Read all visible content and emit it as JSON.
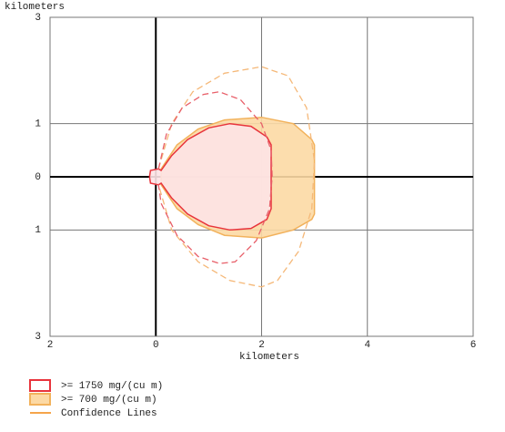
{
  "chart_data": {
    "type": "threat_zone",
    "xlabel": "kilometers",
    "ylabel": "kilometers",
    "xlim": [
      -2,
      6
    ],
    "ylim": [
      -3,
      3
    ],
    "xticks": [
      {
        "value": -2,
        "label": "2"
      },
      0,
      2,
      4,
      6
    ],
    "yticks": [
      {
        "value": -3,
        "label": "3"
      },
      {
        "value": -1,
        "label": "1"
      },
      0,
      1,
      3
    ],
    "grid": true,
    "series": [
      {
        "name": ">= 700 mg/(cu m)",
        "color": "#f2b25c",
        "fill": "#fcd9a4",
        "x": [
          0.1,
          0.4,
          0.8,
          1.3,
          2.0,
          2.6,
          2.95,
          3.0,
          3.0,
          2.95,
          2.6,
          2.0,
          1.3,
          0.8,
          0.4,
          0.1
        ],
        "y": [
          0.15,
          0.6,
          0.9,
          1.07,
          1.12,
          1.0,
          0.7,
          0.6,
          -0.7,
          -0.8,
          -1.0,
          -1.15,
          -1.1,
          -0.9,
          -0.6,
          -0.15
        ]
      },
      {
        "name": ">= 1750 mg/(cu m)",
        "color": "#e8343c",
        "fill": "#fde3e6",
        "x": [
          0.1,
          0.3,
          0.6,
          1.0,
          1.4,
          1.8,
          2.1,
          2.18,
          2.18,
          2.1,
          1.8,
          1.4,
          1.0,
          0.6,
          0.3,
          0.1,
          0.05,
          -0.1,
          -0.12,
          -0.1,
          0.05
        ],
        "y": [
          0.12,
          0.4,
          0.7,
          0.92,
          1.0,
          0.95,
          0.75,
          0.6,
          -0.6,
          -0.8,
          -0.97,
          -1.0,
          -0.92,
          -0.7,
          -0.4,
          -0.12,
          -0.15,
          -0.12,
          0,
          0.12,
          0.15
        ]
      },
      {
        "name": "Confidence Lines",
        "color": "#f5a54a",
        "lines": [
          {
            "color": "#f5b878",
            "x": [
              0.05,
              0.3,
              0.7,
              1.3,
              2.0,
              2.5,
              2.85,
              3.0,
              2.95,
              2.7,
              2.3,
              2.0,
              1.4,
              0.8,
              0.3,
              0.05
            ],
            "y": [
              0.15,
              1.0,
              1.6,
              1.95,
              2.07,
              1.9,
              1.3,
              0.3,
              -0.6,
              -1.4,
              -1.95,
              -2.07,
              -1.95,
              -1.6,
              -1.0,
              -0.15
            ]
          },
          {
            "color": "#e8606a",
            "x": [
              0.05,
              0.2,
              0.5,
              0.9,
              1.2,
              1.6,
              2.0,
              2.18,
              2.2,
              2.15,
              1.9,
              1.5,
              1.2,
              0.8,
              0.4,
              0.1,
              0.05
            ],
            "y": [
              0.15,
              0.8,
              1.3,
              1.55,
              1.6,
              1.45,
              1.0,
              0.5,
              0,
              -0.6,
              -1.2,
              -1.6,
              -1.63,
              -1.5,
              -1.1,
              -0.5,
              -0.15
            ]
          }
        ]
      }
    ]
  }
}
